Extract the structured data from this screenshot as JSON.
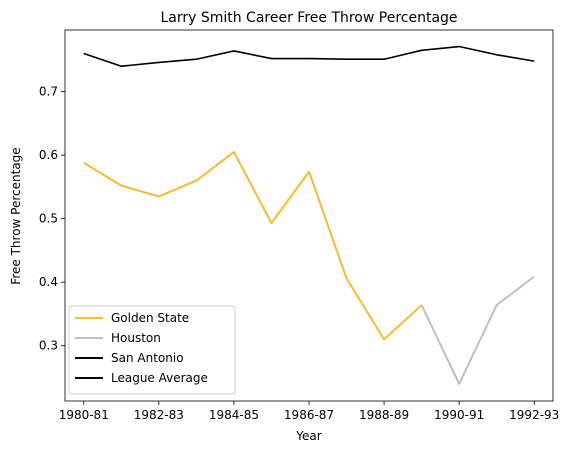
{
  "chart_data": {
    "type": "line",
    "title": "Larry Smith  Career Free Throw Percentage",
    "xlabel": "Year",
    "ylabel": "Free Throw Percentage",
    "x_ticks": [
      "1980-81",
      "1982-83",
      "1984-85",
      "1986-87",
      "1988-89",
      "1990-91",
      "1992-93"
    ],
    "y_ticks": [
      0.3,
      0.4,
      0.5,
      0.6,
      0.7
    ],
    "ylim": [
      0.213,
      0.797
    ],
    "xlim": [
      -0.5,
      12.5
    ],
    "grid": false,
    "legend_position": "lower-left",
    "series": [
      {
        "name": "Golden State",
        "color": "#F9BB2F",
        "width": 2,
        "points": [
          [
            0,
            0.588
          ],
          [
            1,
            0.552
          ],
          [
            2,
            0.535
          ],
          [
            3,
            0.56
          ],
          [
            4,
            0.605
          ],
          [
            5,
            0.493
          ],
          [
            6,
            0.574
          ],
          [
            7,
            0.406
          ],
          [
            8,
            0.31
          ],
          [
            9,
            0.364
          ]
        ]
      },
      {
        "name": "Houston",
        "color": "#C0C0C0",
        "width": 2,
        "points": [
          [
            9,
            0.364
          ],
          [
            10,
            0.24
          ],
          [
            11,
            0.364
          ],
          [
            12,
            0.409
          ]
        ]
      },
      {
        "name": "San Antonio",
        "color": "#000000",
        "width": 2,
        "points": []
      },
      {
        "name": "League Average",
        "color": "#000000",
        "width": 1.6,
        "points": [
          [
            0,
            0.76
          ],
          [
            1,
            0.74
          ],
          [
            2,
            0.746
          ],
          [
            3,
            0.751
          ],
          [
            4,
            0.764
          ],
          [
            5,
            0.752
          ],
          [
            6,
            0.752
          ],
          [
            7,
            0.751
          ],
          [
            8,
            0.751
          ],
          [
            9,
            0.765
          ],
          [
            10,
            0.771
          ],
          [
            11,
            0.758
          ],
          [
            12,
            0.748
          ]
        ]
      }
    ]
  }
}
